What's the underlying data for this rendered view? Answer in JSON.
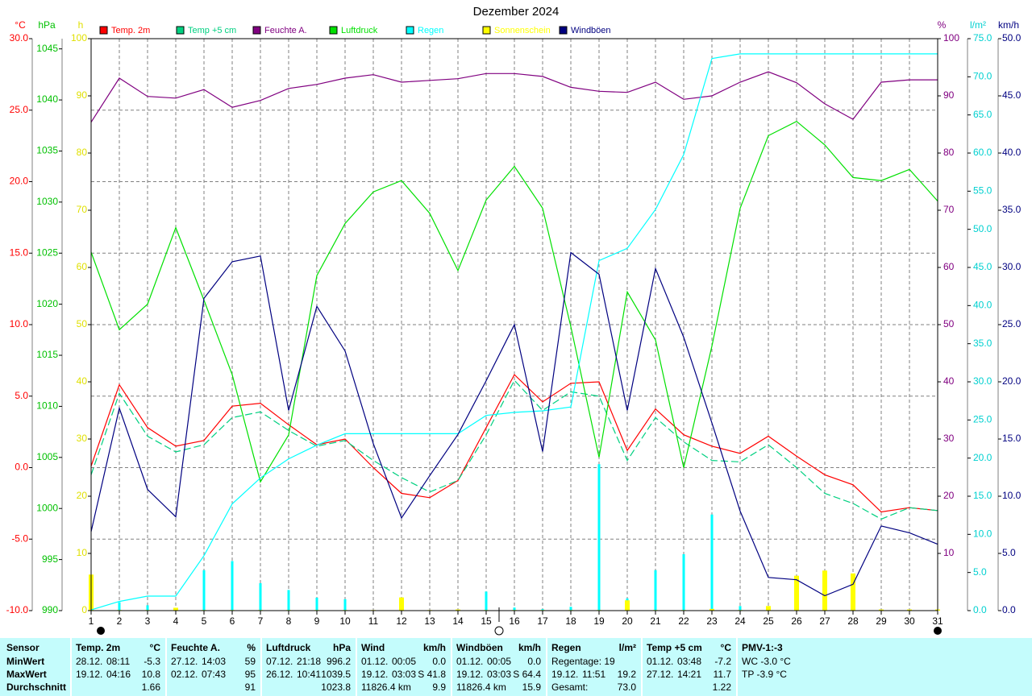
{
  "chart_data": {
    "type": "multi-axis",
    "title": "Dezember 2024",
    "x": [
      1,
      2,
      3,
      4,
      5,
      6,
      7,
      8,
      9,
      10,
      11,
      12,
      13,
      14,
      15,
      16,
      17,
      18,
      19,
      20,
      21,
      22,
      23,
      24,
      25,
      26,
      27,
      28,
      29,
      30,
      31
    ],
    "xlim": [
      1,
      31
    ],
    "xticks": [
      1,
      2,
      3,
      4,
      5,
      6,
      7,
      8,
      9,
      10,
      11,
      12,
      13,
      14,
      15,
      16,
      17,
      18,
      19,
      20,
      21,
      22,
      23,
      24,
      25,
      26,
      27,
      28,
      29,
      30,
      31
    ],
    "xgrid": true,
    "axes": [
      {
        "label": "°C",
        "color": "#ff0000",
        "lim": [
          -10,
          30
        ],
        "grid": true,
        "ticks": [
          {
            "value": -10,
            "label": "-10.0"
          },
          {
            "value": -5,
            "label": "-5.0"
          },
          {
            "value": 0,
            "label": "0.0"
          },
          {
            "value": 5,
            "label": "5.0"
          },
          {
            "value": 10,
            "label": "10.0"
          },
          {
            "value": 15,
            "label": "15.0"
          },
          {
            "value": 20,
            "label": "20.0"
          },
          {
            "value": 25,
            "label": "25.0"
          },
          {
            "value": 30,
            "label": "30.0"
          }
        ]
      },
      {
        "label": "hPa",
        "color": "#00c000",
        "lim": [
          990,
          1046
        ],
        "grid": false,
        "ticks": [
          990,
          995,
          1000,
          1005,
          1010,
          1015,
          1020,
          1025,
          1030,
          1035,
          1040,
          1045
        ]
      },
      {
        "label": "h",
        "color": "#e0e000",
        "lim": [
          0,
          100
        ],
        "grid": false,
        "ticks": [
          0,
          10,
          20,
          30,
          40,
          50,
          60,
          70,
          80,
          90,
          100
        ]
      },
      {
        "label": "%",
        "color": "#800080",
        "lim": [
          0,
          100
        ],
        "grid": false,
        "ticks": [
          10,
          20,
          30,
          40,
          50,
          60,
          70,
          80,
          90,
          100
        ]
      },
      {
        "label": "l/m²",
        "color": "#00d0d0",
        "lim": [
          0,
          75
        ],
        "grid": false,
        "ticks": [
          {
            "value": 0,
            "label": "0.0"
          },
          {
            "value": 5,
            "label": "5.0"
          },
          {
            "value": 10,
            "label": "10.0"
          },
          {
            "value": 15,
            "label": "15.0"
          },
          {
            "value": 20,
            "label": "20.0"
          },
          {
            "value": 25,
            "label": "25.0"
          },
          {
            "value": 30,
            "label": "30.0"
          },
          {
            "value": 35,
            "label": "35.0"
          },
          {
            "value": 40,
            "label": "40.0"
          },
          {
            "value": 45,
            "label": "45.0"
          },
          {
            "value": 50,
            "label": "50.0"
          },
          {
            "value": 55,
            "label": "55.0"
          },
          {
            "value": 60,
            "label": "60.0"
          },
          {
            "value": 65,
            "label": "65.0"
          },
          {
            "value": 70,
            "label": "70.0"
          },
          {
            "value": 75,
            "label": "75.0"
          }
        ]
      },
      {
        "label": "km/h",
        "color": "#000080",
        "lim": [
          0,
          50
        ],
        "grid": false,
        "ticks": [
          {
            "value": 0,
            "label": "0.0"
          },
          {
            "value": 5,
            "label": "5.0"
          },
          {
            "value": 10,
            "label": "10.0"
          },
          {
            "value": 15,
            "label": "15.0"
          },
          {
            "value": 20,
            "label": "20.0"
          },
          {
            "value": 25,
            "label": "25.0"
          },
          {
            "value": 30,
            "label": "30.0"
          },
          {
            "value": 35,
            "label": "35.0"
          },
          {
            "value": 40,
            "label": "40.0"
          },
          {
            "value": 45,
            "label": "45.0"
          },
          {
            "value": 50,
            "label": "50.0"
          }
        ]
      }
    ],
    "series": [
      {
        "name": "Temp. 2m",
        "color": "#ff0000",
        "type": "line",
        "axis": 0,
        "values": [
          0.1,
          5.8,
          2.8,
          1.5,
          1.9,
          4.3,
          4.5,
          3.0,
          1.6,
          2.0,
          0.0,
          -1.8,
          -2.1,
          -0.9,
          2.8,
          6.5,
          4.6,
          5.9,
          6.0,
          1.2,
          4.1,
          2.3,
          1.5,
          1.0,
          2.2,
          0.8,
          -0.5,
          -1.2,
          -3.1,
          -2.8,
          -3.0
        ]
      },
      {
        "name": "Temp +5 cm",
        "color": "#00d080",
        "type": "line",
        "axis": 0,
        "dashed": true,
        "values": [
          -0.5,
          5.2,
          2.2,
          1.1,
          1.6,
          3.5,
          3.9,
          2.6,
          1.5,
          1.9,
          0.5,
          -0.7,
          -1.7,
          -0.9,
          2.3,
          6.1,
          4.0,
          5.3,
          5.0,
          0.5,
          3.5,
          1.8,
          0.5,
          0.4,
          1.6,
          0.0,
          -1.8,
          -2.5,
          -3.6,
          -2.8,
          -3.0
        ]
      },
      {
        "name": "Feuchte A.",
        "color": "#800080",
        "type": "line",
        "axis": 3,
        "values": [
          85.4,
          93.1,
          89.9,
          89.6,
          91.1,
          88.0,
          89.2,
          91.3,
          92.0,
          93.1,
          93.7,
          92.4,
          92.7,
          93.0,
          93.9,
          93.9,
          93.4,
          91.5,
          90.8,
          90.6,
          92.4,
          89.4,
          90.0,
          92.4,
          94.2,
          92.3,
          88.6,
          85.9,
          92.4,
          92.8,
          92.8
        ]
      },
      {
        "name": "Luftdruck",
        "color": "#00e000",
        "type": "line",
        "axis": 1,
        "values": [
          1025.1,
          1017.5,
          1020.0,
          1027.5,
          1020.4,
          1013.1,
          1002.6,
          1007.2,
          1022.8,
          1027.9,
          1031.0,
          1032.1,
          1028.9,
          1023.3,
          1030.2,
          1033.5,
          1029.4,
          1017.8,
          1005.0,
          1021.2,
          1016.5,
          1004.0,
          1015.9,
          1029.4,
          1036.5,
          1037.9,
          1035.6,
          1032.4,
          1032.1,
          1033.2,
          1030.1
        ]
      },
      {
        "name": "Regen",
        "color": "#00ffff",
        "type": "line",
        "axis": 4,
        "values": [
          0.1,
          1.2,
          1.9,
          1.9,
          7.2,
          14.0,
          17.4,
          19.9,
          21.7,
          23.2,
          23.2,
          23.2,
          23.2,
          23.2,
          25.6,
          26.0,
          26.2,
          26.7,
          45.9,
          47.5,
          52.6,
          59.8,
          72.4,
          73.0,
          73.0,
          73.0,
          73.0,
          73.0,
          73.0,
          73.0,
          73.0
        ],
        "bars": [
          0,
          1.1,
          0.7,
          0,
          5.3,
          6.5,
          3.6,
          2.7,
          1.7,
          1.5,
          0,
          0,
          0,
          0,
          2.5,
          0.4,
          0.2,
          0.5,
          19.2,
          1.6,
          5.3,
          7.4,
          12.6,
          0.6,
          0,
          0,
          0,
          0,
          0,
          0,
          0
        ]
      },
      {
        "name": "Sonnenschein",
        "color": "#ffff00",
        "type": "bar",
        "axis": 2,
        "values": [
          6.3,
          0.1,
          0.1,
          0.5,
          0.1,
          0.1,
          0.1,
          0.1,
          0.1,
          0.1,
          0.1,
          2.3,
          0.1,
          0.2,
          0.1,
          0.1,
          0.1,
          0.1,
          0.1,
          1.8,
          0.1,
          0.1,
          0.3,
          0.1,
          0.8,
          6.1,
          7.0,
          6.5,
          0.2,
          0.2,
          0.2
        ]
      },
      {
        "name": "Windböen",
        "color": "#000080",
        "type": "line",
        "axis": 5,
        "values": [
          6.9,
          17.7,
          10.6,
          8.2,
          27.3,
          30.5,
          31.0,
          17.5,
          26.6,
          22.7,
          14.6,
          8.1,
          11.8,
          15.4,
          20.1,
          25.0,
          13.9,
          31.3,
          29.4,
          17.5,
          29.9,
          23.9,
          16.4,
          8.7,
          2.9,
          2.7,
          1.3,
          2.3,
          7.4,
          6.8,
          5.8
        ]
      }
    ]
  },
  "table": {
    "row_labels_title": "Sensor",
    "row_labels": [
      "MinWert",
      "MaxWert",
      "Durchschnitt"
    ],
    "blocks": [
      {
        "title": "Temp. 2m",
        "unit": "°C",
        "rows": [
          {
            "date": "28.12.",
            "time": "08:11",
            "value": "-5.3"
          },
          {
            "date": "19.12.",
            "time": "04:16",
            "value": "10.8"
          },
          {
            "value": "1.66"
          }
        ]
      },
      {
        "title": "Feuchte A.",
        "unit": "%",
        "rows": [
          {
            "date": "27.12.",
            "time": "14:03",
            "value": "59"
          },
          {
            "date": "02.12.",
            "time": "07:43",
            "value": "95"
          },
          {
            "value": "91"
          }
        ]
      },
      {
        "title": "Luftdruck",
        "unit": "hPa",
        "rows": [
          {
            "date": "07.12.",
            "time": "21:18",
            "value": "996.2"
          },
          {
            "date": "26.12.",
            "time": "10:41",
            "value": "1039.5"
          },
          {
            "value": "1023.8"
          }
        ]
      },
      {
        "title": "Wind",
        "unit": "km/h",
        "rows": [
          {
            "date": "01.12.",
            "time": "00:05",
            "value": "0.0"
          },
          {
            "date": "19.12.",
            "time": "03:03",
            "value": "S 41.8"
          },
          {
            "date": "11826.4 km",
            "value": "9.9"
          }
        ]
      },
      {
        "title": "Windböen",
        "unit": "km/h",
        "rows": [
          {
            "date": "01.12.",
            "time": "00:05",
            "value": "0.0"
          },
          {
            "date": "19.12.",
            "time": "03:03",
            "value": "S 64.4"
          },
          {
            "date": "11826.4 km",
            "value": "15.9"
          }
        ]
      },
      {
        "title": "Regen",
        "unit": "l/m²",
        "rows": [
          {
            "date": "Regentage: 19"
          },
          {
            "date": "19.12.",
            "time": "11:51",
            "value": "19.2"
          },
          {
            "date": "Gesamt:",
            "value": "73.0"
          }
        ]
      },
      {
        "title": "Temp +5 cm",
        "unit": "°C",
        "rows": [
          {
            "date": "01.12.",
            "time": "03:48",
            "value": "-7.2"
          },
          {
            "date": "27.12.",
            "time": "14:21",
            "value": "11.7"
          },
          {
            "value": "1.22"
          }
        ]
      },
      {
        "title": "PMV-1:-3",
        "rows": [
          {
            "date": "WC -3.0 °C"
          },
          {
            "date": "TP -3.9 °C"
          }
        ]
      }
    ]
  }
}
